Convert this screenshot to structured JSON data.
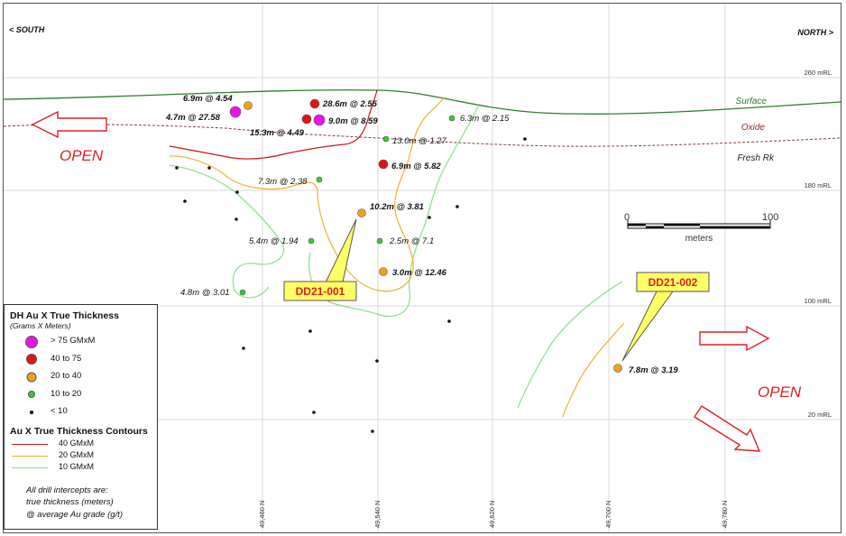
{
  "directions": {
    "south": "< SOUTH",
    "north": "NORTH >"
  },
  "elevations": [
    "260 mRL",
    "180 mRL",
    "100 mRL",
    "20 mRL"
  ],
  "northings": [
    "49,460 N",
    "49,540 N",
    "49,620 N",
    "49,700 N",
    "49,780 N"
  ],
  "horizons": {
    "surface": "Surface",
    "oxide": "Oxide",
    "fresh": "Fresh Rk"
  },
  "open_label": "OPEN",
  "scale_bar": {
    "start": "0",
    "end": "100",
    "unit": "meters"
  },
  "drillholes": {
    "dd21_001": "DD21-001",
    "dd21_002": "DD21-002"
  },
  "intercepts": [
    {
      "text": "6.9m @ 4.54",
      "bold": true
    },
    {
      "text": "4.7m @ 27.58",
      "bold": true
    },
    {
      "text": "28.6m @ 2.55",
      "bold": true
    },
    {
      "text": "9.0m @ 8.59",
      "bold": true
    },
    {
      "text": "15.3m @ 4.49",
      "bold": true
    },
    {
      "text": "6.3m @ 2.15",
      "bold": false
    },
    {
      "text": "13.0m @ 1.27",
      "bold": false
    },
    {
      "text": "6.9m @ 5.82",
      "bold": true
    },
    {
      "text": "7.3m @ 2.38",
      "bold": false
    },
    {
      "text": "10.2m @ 3.81",
      "bold": true
    },
    {
      "text": "5.4m @ 1.94",
      "bold": false
    },
    {
      "text": "2.5m @ 7.1",
      "bold": false
    },
    {
      "text": "3.0m @ 12.46",
      "bold": true
    },
    {
      "text": "4.8m @ 3.01",
      "bold": false
    },
    {
      "text": "7.8m @ 3.19",
      "bold": true
    }
  ],
  "legend": {
    "title": "DH Au X True Thickness",
    "subtitle": "(Grams X Meters)",
    "classes": [
      {
        "label": "> 75 GMxM",
        "color": "#ee11ee"
      },
      {
        "label": "40  to  75",
        "color": "#e31414"
      },
      {
        "label": "20  to  40",
        "color": "#f0a020"
      },
      {
        "label": "10  to  20",
        "color": "#33cc33"
      },
      {
        "label": "< 10",
        "color": "#000000"
      }
    ],
    "contour_title": "Au X True Thickness Contours",
    "contours": [
      {
        "label": "40 GMxM",
        "color": "#c81818"
      },
      {
        "label": "20 GMxM",
        "color": "#f0b030"
      },
      {
        "label": "10 GMxM",
        "color": "#88e088"
      }
    ],
    "note": [
      "All drill intercepts are:",
      "true thickness (meters)",
      "@ average Au grade (g/t)"
    ]
  },
  "colors": {
    "surface": "#2e7d2e",
    "oxide": "#8b3a3a",
    "open_arrow": "#e02020",
    "callout": "#ffff66"
  }
}
